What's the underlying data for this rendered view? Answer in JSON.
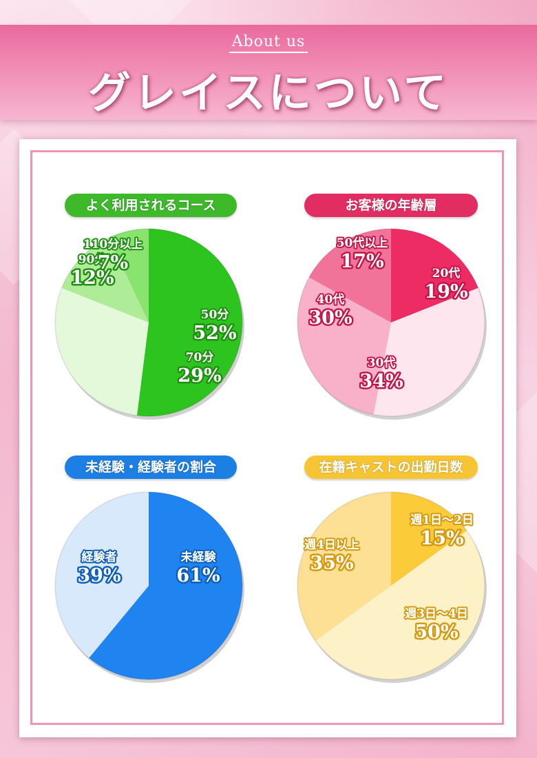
{
  "header": {
    "subtitle": "About us",
    "title": "グレイスについて"
  },
  "chart_data": [
    {
      "type": "pie",
      "title": "よく利用されるコース",
      "slices": [
        {
          "label": "50分",
          "value": 52,
          "pct": "52%",
          "color": "#2ec41f"
        },
        {
          "label": "70分",
          "value": 29,
          "pct": "29%",
          "color": "#e3f9d9"
        },
        {
          "label": "90分",
          "value": 12,
          "pct": "12%",
          "color": "#aeec98"
        },
        {
          "label": "110分以上",
          "value": 7,
          "pct": "7%",
          "color": "#88e46e"
        }
      ],
      "colors": {
        "pill": "#3db92a",
        "text": "#ffffff",
        "outline": "#1f8f12"
      }
    },
    {
      "type": "pie",
      "title": "お客様の年齢層",
      "slices": [
        {
          "label": "20代",
          "value": 19,
          "pct": "19%",
          "color": "#ec2c62"
        },
        {
          "label": "30代",
          "value": 34,
          "pct": "34%",
          "color": "#fde6ee"
        },
        {
          "label": "40代",
          "value": 30,
          "pct": "30%",
          "color": "#f8b1c8"
        },
        {
          "label": "50代以上",
          "value": 17,
          "pct": "17%",
          "color": "#f27399"
        }
      ],
      "colors": {
        "pill": "#e22d63",
        "text": "#ffffff",
        "outline": "#c1174a"
      }
    },
    {
      "type": "pie",
      "title": "未経験・経験者の割合",
      "slices": [
        {
          "label": "未経験",
          "value": 61,
          "pct": "61%",
          "color": "#1f83f0"
        },
        {
          "label": "経験者",
          "value": 39,
          "pct": "39%",
          "color": "#d8e9fb"
        }
      ],
      "colors": {
        "pill": "#1c7fe4",
        "text": "#ffffff",
        "outline": "#0d5fb8"
      }
    },
    {
      "type": "pie",
      "title": "在籍キャストの出勤日数",
      "slices": [
        {
          "label": "週1日～2日",
          "value": 15,
          "pct": "15%",
          "color": "#fbcb3a"
        },
        {
          "label": "週3日～4日",
          "value": 50,
          "pct": "50%",
          "color": "#fdf1c8"
        },
        {
          "label": "週4日以上",
          "value": 35,
          "pct": "35%",
          "color": "#fde093"
        }
      ],
      "colors": {
        "pill": "#f7c533",
        "text": "#ffffff",
        "outline": "#d49a10"
      }
    }
  ]
}
